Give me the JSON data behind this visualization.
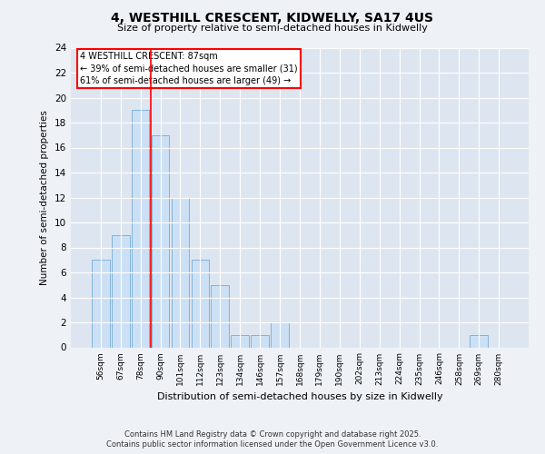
{
  "title": "4, WESTHILL CRESCENT, KIDWELLY, SA17 4US",
  "subtitle": "Size of property relative to semi-detached houses in Kidwelly",
  "xlabel": "Distribution of semi-detached houses by size in Kidwelly",
  "ylabel": "Number of semi-detached properties",
  "categories": [
    "56sqm",
    "67sqm",
    "78sqm",
    "90sqm",
    "101sqm",
    "112sqm",
    "123sqm",
    "134sqm",
    "146sqm",
    "157sqm",
    "168sqm",
    "179sqm",
    "190sqm",
    "202sqm",
    "213sqm",
    "224sqm",
    "235sqm",
    "246sqm",
    "258sqm",
    "269sqm",
    "280sqm"
  ],
  "values": [
    7,
    9,
    19,
    17,
    12,
    7,
    5,
    1,
    1,
    2,
    0,
    0,
    0,
    0,
    0,
    0,
    0,
    0,
    0,
    1,
    0
  ],
  "bar_color": "#cce0f5",
  "bar_edge_color": "#7fb3d9",
  "red_line_x": 2.5,
  "annotation_title": "4 WESTHILL CRESCENT: 87sqm",
  "annotation_line1": "← 39% of semi-detached houses are smaller (31)",
  "annotation_line2": "61% of semi-detached houses are larger (49) →",
  "ylim": [
    0,
    24
  ],
  "yticks": [
    0,
    2,
    4,
    6,
    8,
    10,
    12,
    14,
    16,
    18,
    20,
    22,
    24
  ],
  "footer_line1": "Contains HM Land Registry data © Crown copyright and database right 2025.",
  "footer_line2": "Contains public sector information licensed under the Open Government Licence v3.0.",
  "bg_color": "#eef2f7",
  "plot_bg_color": "#dde6f0"
}
